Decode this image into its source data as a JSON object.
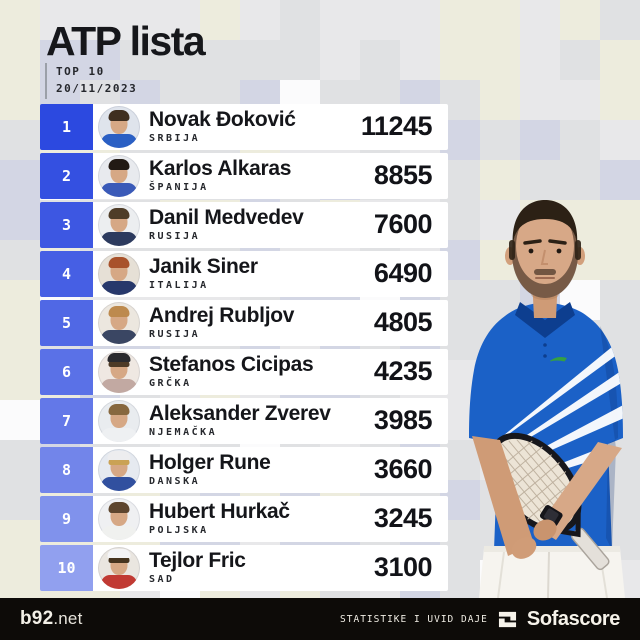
{
  "header": {
    "title": "ATP lista",
    "top_label": "TOP 10",
    "date": "20/11/2023"
  },
  "chart_data": {
    "type": "table",
    "title": "ATP lista",
    "subtitle": "TOP 10 20/11/2023",
    "columns": [
      "rank",
      "player",
      "country",
      "points"
    ],
    "rows": [
      {
        "rank": "1",
        "name": "Novak Đoković",
        "country": "SRBIJA",
        "points": "11245",
        "avatar": {
          "bg": "#dfe4ec",
          "hair": "#3f2f20",
          "top": "#2a5fc4"
        }
      },
      {
        "rank": "2",
        "name": "Karlos Alkaras",
        "country": "ŠPANIJA",
        "points": "8855",
        "avatar": {
          "bg": "#e8eaee",
          "hair": "#221a14",
          "top": "#3a5ab8"
        }
      },
      {
        "rank": "3",
        "name": "Danil Medvedev",
        "country": "RUSIJA",
        "points": "7600",
        "avatar": {
          "bg": "#eceef0",
          "hair": "#4f3d28",
          "top": "#2c3a5e"
        }
      },
      {
        "rank": "4",
        "name": "Janik Siner",
        "country": "ITALIJA",
        "points": "6490",
        "avatar": {
          "bg": "#e6e0d6",
          "hair": "#a8522b",
          "top": "#27386b"
        }
      },
      {
        "rank": "5",
        "name": "Andrej Rubljov",
        "country": "RUSIJA",
        "points": "4805",
        "avatar": {
          "bg": "#ece7df",
          "hair": "#bd8a4e",
          "top": "#3a4663"
        }
      },
      {
        "rank": "6",
        "name": "Stefanos Cicipas",
        "country": "GRČKA",
        "points": "4235",
        "avatar": {
          "bg": "#efe8e2",
          "hair": "#4e3b27",
          "top": "#c2a9a2",
          "cap": "#2a2a2e"
        }
      },
      {
        "rank": "7",
        "name": "Aleksander Zverev",
        "country": "NJEMAČKA",
        "points": "3985",
        "avatar": {
          "bg": "#e9ecef",
          "hair": "#87683f",
          "top": "#eef0f2"
        }
      },
      {
        "rank": "8",
        "name": "Holger Rune",
        "country": "DANSKA",
        "points": "3660",
        "avatar": {
          "bg": "#e6eaf0",
          "hair": "#caa255",
          "top": "#31509f",
          "cap": "#ededef"
        }
      },
      {
        "rank": "9",
        "name": "Hubert Hurkač",
        "country": "POLJSKA",
        "points": "3245",
        "avatar": {
          "bg": "#eff0f2",
          "hair": "#5d452e",
          "top": "#f0f1ef"
        }
      },
      {
        "rank": "10",
        "name": "Tejlor Fric",
        "country": "SAD",
        "points": "3100",
        "avatar": {
          "bg": "#eae6e0",
          "hair": "#46341f",
          "top": "#c13a33",
          "cap": "#f4f4f6"
        }
      }
    ]
  },
  "footer": {
    "site_bold": "b92",
    "site_suffix": ".net",
    "attribution": "STATISTIKE I UVID DAJE",
    "brand": "Sofascore",
    "logo_icon": "sofascore-logo"
  },
  "colors": {
    "rank_blue": "#2c49e0",
    "footer_bg": "#0d0b08",
    "footer_text": "#f3f0e7",
    "shirt_blue": "#1b61c7",
    "mosaic_beige": "#edecdd",
    "mosaic_blue_gray": "#d3d6e4",
    "mosaic_base_gray": "#e0e1e3"
  }
}
